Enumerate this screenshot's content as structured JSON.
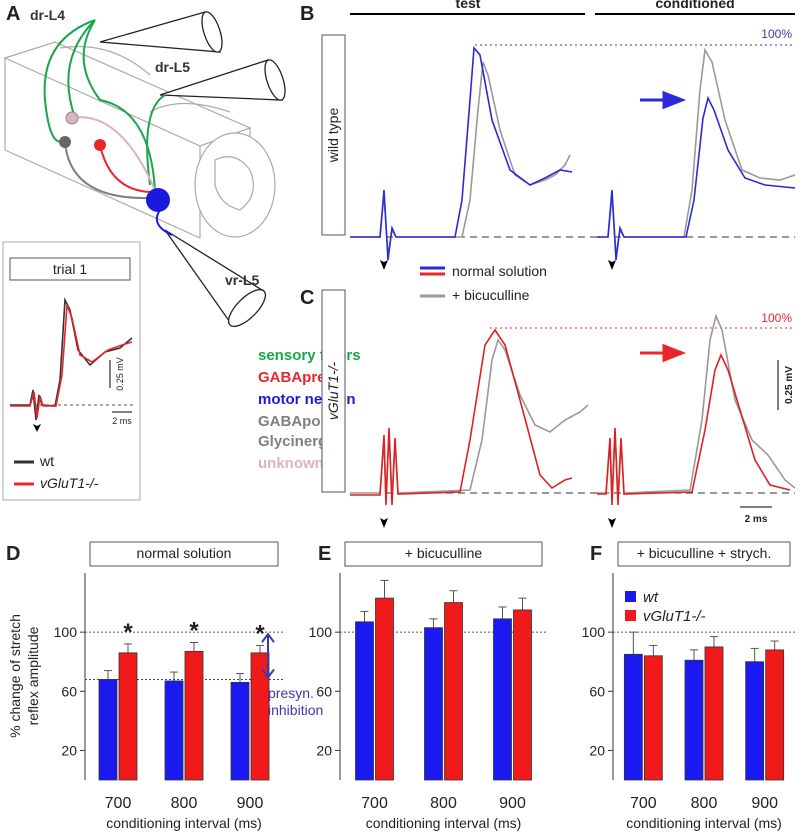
{
  "panel_labels": [
    "A",
    "B",
    "C",
    "D",
    "E",
    "F"
  ],
  "diagram_a": {
    "roots": [
      "dr-L4",
      "dr-L5",
      "vr-L5"
    ],
    "legend": [
      {
        "lines": [
          "sensory fibers"
        ],
        "color": "#1aa64a"
      },
      {
        "lines": [
          "GABApre"
        ],
        "color": "#e8262b"
      },
      {
        "lines": [
          "motor neuron"
        ],
        "color": "#1a1adc"
      },
      {
        "lines": [
          "GABApost/",
          "Glycinergic"
        ],
        "color": "#808080"
      },
      {
        "lines": [
          "unknown"
        ],
        "color": "#d9b3c4"
      }
    ]
  },
  "inset": {
    "title": "trial 1",
    "scale_v": "0.25 mV",
    "scale_t": "2 ms",
    "legend": [
      {
        "label": "wt",
        "color": "#333333"
      },
      {
        "label": "vGluT1-/-",
        "color": "#e8262b"
      }
    ]
  },
  "traces": {
    "columns": [
      "test",
      "conditioned"
    ],
    "row_labels": [
      "wild type",
      "vGluT1-/-"
    ],
    "reference": "100%",
    "legend": [
      "normal solution",
      "+ bicuculline"
    ],
    "scale_v": "0.25 mV",
    "scale_t": "2 ms"
  },
  "chart_data": [
    {
      "type": "bar",
      "title": "normal solution",
      "categories": [
        "700",
        "800",
        "900"
      ],
      "series": [
        {
          "color": "#1a1af0",
          "values": [
            68,
            67,
            66
          ],
          "errors": [
            6,
            6,
            6
          ]
        },
        {
          "color": "#f01a1a",
          "values": [
            86,
            87,
            86
          ],
          "errors": [
            6,
            6,
            5
          ]
        }
      ],
      "significance": [
        "*",
        "*",
        "*"
      ],
      "reference_lines": [
        100,
        68
      ],
      "annotation": [
        "presyn.",
        "inhibition"
      ],
      "ylabel": [
        "% change of stretch",
        "reflex amplitude"
      ],
      "xlabel": "conditioning interval (ms)",
      "ylim": [
        0,
        140
      ],
      "yticks": [
        20,
        60,
        100
      ]
    },
    {
      "type": "bar",
      "title": "+ bicuculline",
      "categories": [
        "700",
        "800",
        "900"
      ],
      "series": [
        {
          "color": "#1a1af0",
          "values": [
            107,
            103,
            109
          ],
          "errors": [
            7,
            6,
            8
          ]
        },
        {
          "color": "#f01a1a",
          "values": [
            123,
            120,
            115
          ],
          "errors": [
            12,
            8,
            8
          ]
        }
      ],
      "reference_lines": [
        100
      ],
      "xlabel": "conditioning interval (ms)",
      "ylim": [
        0,
        140
      ],
      "yticks": [
        20,
        60,
        100
      ]
    },
    {
      "type": "bar",
      "title": "+ bicuculline + strych.",
      "categories": [
        "700",
        "800",
        "900"
      ],
      "series": [
        {
          "name": "wt",
          "color": "#1a1af0",
          "values": [
            85,
            81,
            80
          ],
          "errors": [
            15,
            7,
            9
          ]
        },
        {
          "name": "vGluT1-/-",
          "color": "#f01a1a",
          "values": [
            84,
            90,
            88
          ],
          "errors": [
            7,
            7,
            6
          ]
        }
      ],
      "reference_lines": [
        100
      ],
      "legend": "upper-left",
      "xlabel": "conditioning interval (ms)",
      "ylim": [
        0,
        140
      ],
      "yticks": [
        20,
        60,
        100
      ]
    }
  ]
}
